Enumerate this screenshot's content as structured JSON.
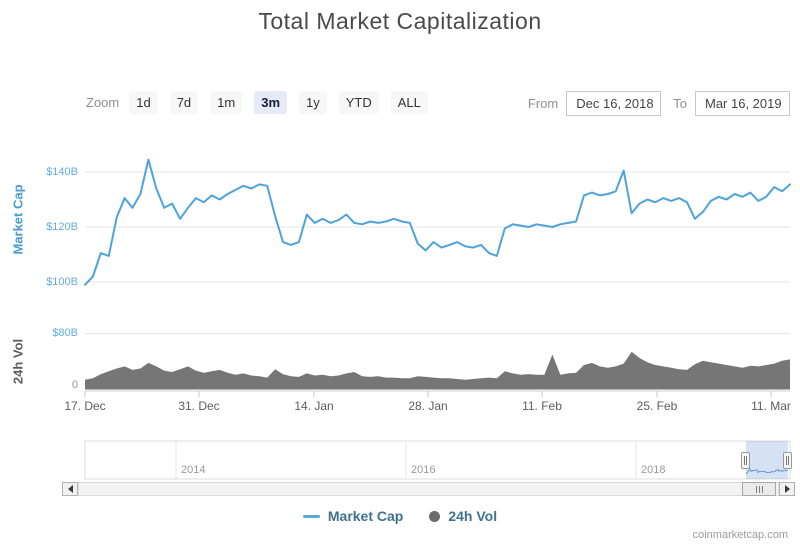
{
  "title": "Total Market Capitalization",
  "attribution": "coinmarketcap.com",
  "controls": {
    "zoom_label": "Zoom",
    "zoom_buttons": [
      {
        "label": "1d",
        "selected": false
      },
      {
        "label": "7d",
        "selected": false
      },
      {
        "label": "1m",
        "selected": false
      },
      {
        "label": "3m",
        "selected": true
      },
      {
        "label": "1y",
        "selected": false
      },
      {
        "label": "YTD",
        "selected": false
      },
      {
        "label": "ALL",
        "selected": false
      }
    ],
    "from_label": "From",
    "from_value": "Dec 16, 2018",
    "to_label": "To",
    "to_value": "Mar 16, 2019"
  },
  "legend": {
    "items": [
      {
        "label": "Market Cap",
        "marker": "line",
        "color": "#5baade"
      },
      {
        "label": "24h Vol",
        "marker": "circle",
        "color": "#6b6b6b"
      }
    ]
  },
  "colors": {
    "market_cap_line": "#4fa3db",
    "volume_fill": "#767676",
    "axis_label_blue": "#63aedd",
    "grid": "#e6e6e6",
    "navigator_selection_fill": "rgba(120,155,215,0.30)",
    "selected_button_bg": "#e6eaf7"
  },
  "chart_data": [
    {
      "type": "line",
      "name": "Market Cap",
      "ylabel": "Market Cap",
      "yticks": [
        "$100B",
        "$120B",
        "$140B"
      ],
      "ylim": [
        97,
        147
      ],
      "unit": "USD billions",
      "xticks": [
        "17. Dec",
        "31. Dec",
        "14. Jan",
        "28. Jan",
        "11. Feb",
        "25. Feb",
        "11. Mar"
      ],
      "x": [
        "Dec 17",
        "Dec 18",
        "Dec 19",
        "Dec 20",
        "Dec 21",
        "Dec 22",
        "Dec 23",
        "Dec 24",
        "Dec 25",
        "Dec 26",
        "Dec 27",
        "Dec 28",
        "Dec 29",
        "Dec 30",
        "Dec 31",
        "Jan 1",
        "Jan 2",
        "Jan 3",
        "Jan 4",
        "Jan 5",
        "Jan 6",
        "Jan 7",
        "Jan 8",
        "Jan 9",
        "Jan 10",
        "Jan 11",
        "Jan 12",
        "Jan 13",
        "Jan 14",
        "Jan 15",
        "Jan 16",
        "Jan 17",
        "Jan 18",
        "Jan 19",
        "Jan 20",
        "Jan 21",
        "Jan 22",
        "Jan 23",
        "Jan 24",
        "Jan 25",
        "Jan 26",
        "Jan 27",
        "Jan 28",
        "Jan 29",
        "Jan 30",
        "Jan 31",
        "Feb 1",
        "Feb 2",
        "Feb 3",
        "Feb 4",
        "Feb 5",
        "Feb 6",
        "Feb 7",
        "Feb 8",
        "Feb 9",
        "Feb 10",
        "Feb 11",
        "Feb 12",
        "Feb 13",
        "Feb 14",
        "Feb 15",
        "Feb 16",
        "Feb 17",
        "Feb 18",
        "Feb 19",
        "Feb 20",
        "Feb 21",
        "Feb 22",
        "Feb 23",
        "Feb 24",
        "Feb 25",
        "Feb 26",
        "Feb 27",
        "Feb 28",
        "Mar 1",
        "Mar 2",
        "Mar 3",
        "Mar 4",
        "Mar 5",
        "Mar 6",
        "Mar 7",
        "Mar 8",
        "Mar 9",
        "Mar 10",
        "Mar 11",
        "Mar 12",
        "Mar 13",
        "Mar 14",
        "Mar 15",
        "Mar 16"
      ],
      "values": [
        99.0,
        102.0,
        110.5,
        109.5,
        123.5,
        130.5,
        127.0,
        132.0,
        144.5,
        134.0,
        127.0,
        128.5,
        123.0,
        127.0,
        130.5,
        129.0,
        131.5,
        130.0,
        132.0,
        133.5,
        135.0,
        134.0,
        135.5,
        135.0,
        124.0,
        114.5,
        113.5,
        114.5,
        124.5,
        121.5,
        123.0,
        121.5,
        122.5,
        124.5,
        121.5,
        121.0,
        122.0,
        121.5,
        122.0,
        123.0,
        122.0,
        121.5,
        114.0,
        111.5,
        114.5,
        112.5,
        113.5,
        114.5,
        113.0,
        112.5,
        113.5,
        110.5,
        109.5,
        119.5,
        121.0,
        120.5,
        120.0,
        121.0,
        120.5,
        120.0,
        121.0,
        121.5,
        122.0,
        131.5,
        132.5,
        131.5,
        132.0,
        133.0,
        140.5,
        125.0,
        128.5,
        130.0,
        129.0,
        130.5,
        129.5,
        130.5,
        129.0,
        123.0,
        125.5,
        129.5,
        131.0,
        130.0,
        132.0,
        131.0,
        132.5,
        129.5,
        131.0,
        134.5,
        133.0,
        135.5
      ]
    },
    {
      "type": "area",
      "name": "24h Vol",
      "ylabel": "24h Vol",
      "yticks": [
        "0",
        "$80B"
      ],
      "ylim": [
        0,
        80
      ],
      "unit": "USD billions",
      "x": "same dates as series 0",
      "values": [
        14,
        16,
        22,
        26,
        30,
        33,
        28,
        30,
        38,
        33,
        27,
        25,
        29,
        33,
        27,
        24,
        26,
        28,
        24,
        21,
        23,
        20,
        19,
        17,
        29,
        22,
        19,
        18,
        23,
        20,
        21,
        19,
        20,
        23,
        25,
        19,
        18,
        19,
        17,
        17,
        16,
        16,
        19,
        18,
        17,
        16,
        16,
        15,
        14,
        15,
        16,
        17,
        16,
        26,
        23,
        21,
        22,
        21,
        21,
        50,
        21,
        23,
        24,
        35,
        38,
        33,
        31,
        33,
        37,
        54,
        45,
        39,
        35,
        33,
        31,
        29,
        28,
        36,
        41,
        39,
        37,
        35,
        33,
        31,
        34,
        33,
        35,
        37,
        41,
        43
      ]
    },
    {
      "type": "navigator",
      "xticks": [
        "2014",
        "2016",
        "2018"
      ],
      "visible_range": [
        "Dec 16, 2018",
        "Mar 16, 2019"
      ]
    }
  ]
}
